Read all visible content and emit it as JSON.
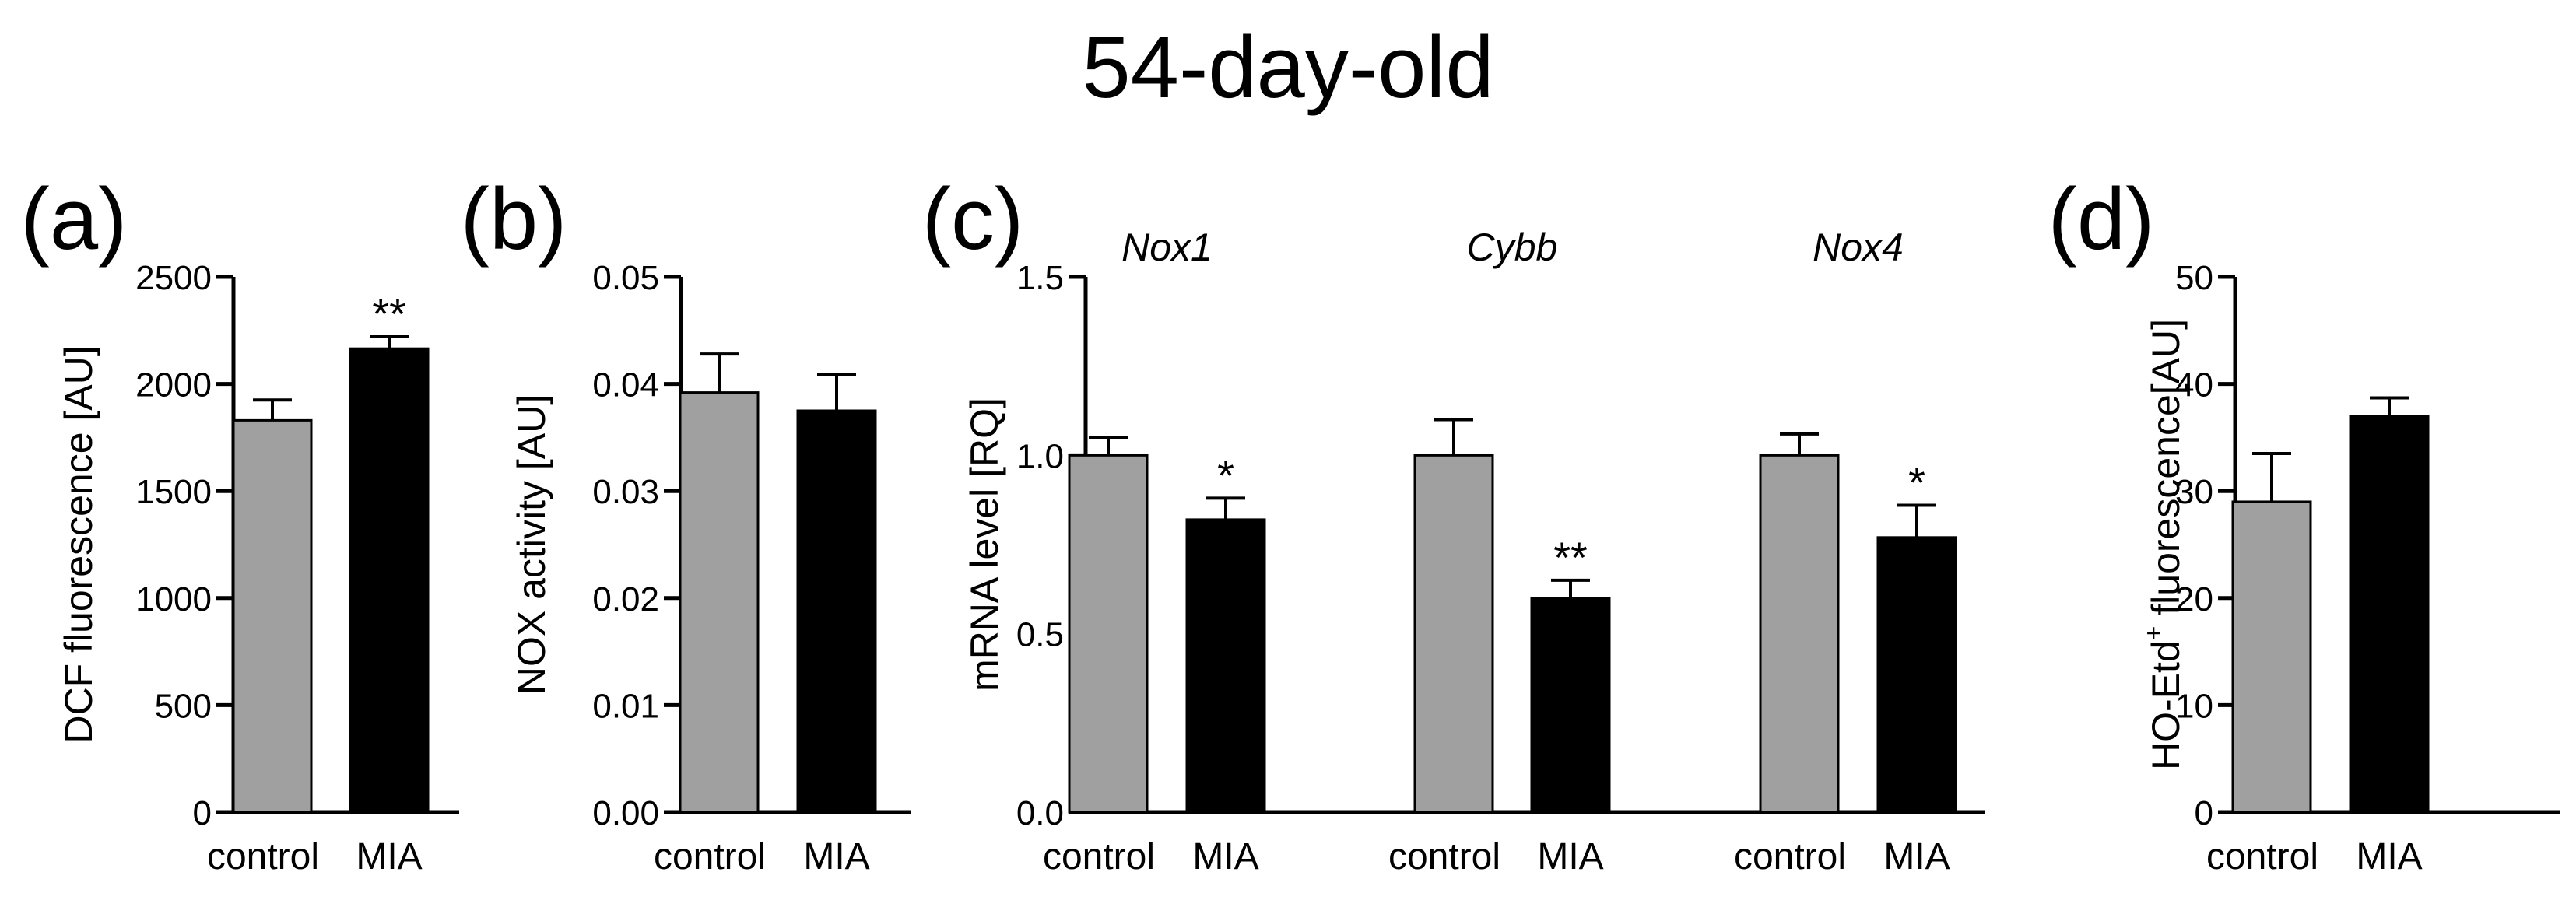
{
  "figure_title": "54-day-old",
  "colors": {
    "control": "#a0a0a0",
    "mia": "#000000",
    "axis": "#000000",
    "bar_outline": "#000000"
  },
  "chart_data": [
    {
      "panel": "(a)",
      "type": "bar",
      "ylabel": "DCF fluorescence [AU]",
      "ylim": [
        0,
        2500
      ],
      "yticks": [
        0,
        500,
        1000,
        1500,
        2000,
        2500
      ],
      "ytick_labels": [
        "0",
        "500",
        "1000",
        "1500",
        "2000",
        "2500"
      ],
      "groups": [
        {
          "name": "",
          "bars": [
            {
              "label": "control",
              "value": 1830,
              "error": 95,
              "sig": ""
            },
            {
              "label": "MIA",
              "value": 2165,
              "error": 55,
              "sig": "**"
            }
          ]
        }
      ]
    },
    {
      "panel": "(b)",
      "type": "bar",
      "ylabel": "NOX activity [AU]",
      "ylim": [
        0,
        0.05
      ],
      "yticks": [
        0,
        0.01,
        0.02,
        0.03,
        0.04,
        0.05
      ],
      "ytick_labels": [
        "0.00",
        "0.01",
        "0.02",
        "0.03",
        "0.04",
        "0.05"
      ],
      "groups": [
        {
          "name": "",
          "bars": [
            {
              "label": "control",
              "value": 0.0392,
              "error": 0.0036,
              "sig": ""
            },
            {
              "label": "MIA",
              "value": 0.0375,
              "error": 0.0034,
              "sig": ""
            }
          ]
        }
      ]
    },
    {
      "panel": "(c)",
      "type": "bar",
      "ylabel": "mRNA level [RQ]",
      "ylim": [
        0,
        1.5
      ],
      "yticks": [
        0,
        0.5,
        1.0,
        1.5
      ],
      "ytick_labels": [
        "0.0",
        "0.5",
        "1.0",
        "1.5"
      ],
      "groups": [
        {
          "name": "Nox1",
          "bars": [
            {
              "label": "control",
              "value": 1.0,
              "error": 0.05,
              "sig": ""
            },
            {
              "label": "MIA",
              "value": 0.82,
              "error": 0.06,
              "sig": "*"
            }
          ]
        },
        {
          "name": "Cybb",
          "bars": [
            {
              "label": "control",
              "value": 1.0,
              "error": 0.1,
              "sig": ""
            },
            {
              "label": "MIA",
              "value": 0.6,
              "error": 0.05,
              "sig": "**"
            }
          ]
        },
        {
          "name": "Nox4",
          "bars": [
            {
              "label": "control",
              "value": 1.0,
              "error": 0.06,
              "sig": ""
            },
            {
              "label": "MIA",
              "value": 0.77,
              "error": 0.09,
              "sig": "*"
            }
          ]
        }
      ]
    },
    {
      "panel": "(d)",
      "type": "bar",
      "ylabel_pre": "HO-Etd",
      "ylabel_sup": "+",
      "ylabel_post": " fluorescence[AU]",
      "ylim": [
        0,
        50
      ],
      "yticks": [
        0,
        10,
        20,
        30,
        40,
        50
      ],
      "ytick_labels": [
        "0",
        "10",
        "20",
        "30",
        "40",
        "50"
      ],
      "groups": [
        {
          "name": "",
          "bars": [
            {
              "label": "control",
              "value": 29,
              "error": 4.5,
              "sig": ""
            },
            {
              "label": "MIA",
              "value": 37,
              "error": 1.7,
              "sig": ""
            }
          ]
        }
      ]
    }
  ]
}
